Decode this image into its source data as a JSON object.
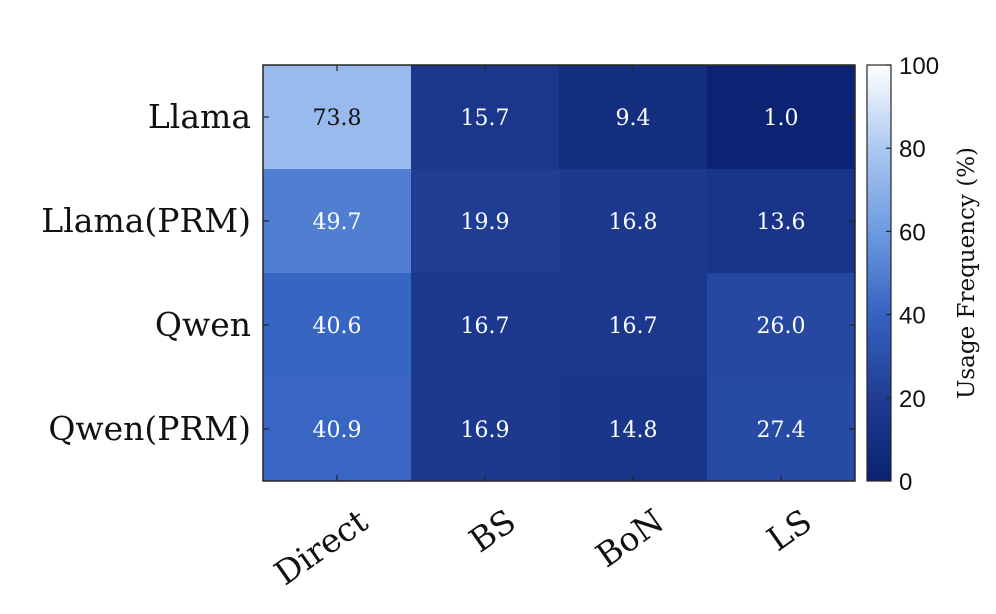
{
  "chart_data": {
    "type": "heatmap",
    "rows": [
      "Llama",
      "Llama(PRM)",
      "Qwen",
      "Qwen(PRM)"
    ],
    "columns": [
      "Direct",
      "BS",
      "BoN",
      "LS"
    ],
    "values": [
      [
        73.8,
        15.7,
        9.4,
        1.0
      ],
      [
        49.7,
        19.9,
        16.8,
        13.6
      ],
      [
        40.6,
        16.7,
        16.7,
        26.0
      ],
      [
        40.9,
        16.9,
        14.8,
        27.4
      ]
    ],
    "value_labels": [
      [
        "73.8",
        "15.7",
        "9.4",
        "1.0"
      ],
      [
        "49.7",
        "19.9",
        "16.8",
        "13.6"
      ],
      [
        "40.6",
        "16.7",
        "16.7",
        "26.0"
      ],
      [
        "40.9",
        "16.9",
        "14.8",
        "27.4"
      ]
    ],
    "colorbar": {
      "label": "Usage Frequency (%)",
      "range": [
        0,
        100
      ],
      "ticks": [
        "0",
        "20",
        "40",
        "60",
        "80",
        "100"
      ],
      "colormap": [
        "#0b2170",
        "#ffffff"
      ]
    }
  }
}
